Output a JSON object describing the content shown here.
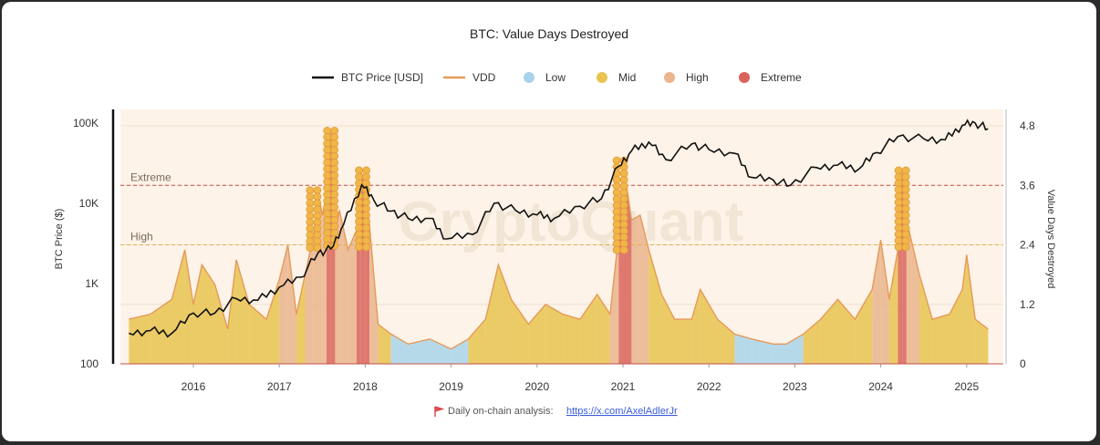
{
  "chart_data": {
    "type": "area",
    "title": "BTC: Value Days Destroyed",
    "legend": [
      {
        "name": "BTC Price [USD]",
        "color": "#111111",
        "kind": "line"
      },
      {
        "name": "VDD",
        "color": "#e59a5a",
        "kind": "line"
      },
      {
        "name": "Low",
        "color": "#a9d3ea",
        "kind": "dot"
      },
      {
        "name": "Mid",
        "color": "#e8c34f",
        "kind": "dot"
      },
      {
        "name": "High",
        "color": "#eab48c",
        "kind": "dot"
      },
      {
        "name": "Extreme",
        "color": "#d9635a",
        "kind": "dot"
      }
    ],
    "legend_placement": "top-center",
    "x_ticks": [
      "2016",
      "2017",
      "2018",
      "2019",
      "2020",
      "2021",
      "2022",
      "2023",
      "2024",
      "2025"
    ],
    "left_axis": {
      "label": "BTC Price ($)",
      "scale": "log",
      "ticks": [
        "100",
        "1K",
        "10K",
        "100K"
      ],
      "range": [
        100,
        150000
      ]
    },
    "right_axis": {
      "label": "Value Days Destroyed",
      "ticks": [
        "0",
        "1.2",
        "2.4",
        "3.6",
        "4.8"
      ],
      "range": [
        0,
        4.8
      ]
    },
    "thresholds": [
      {
        "name": "Extreme",
        "value": 3.6,
        "color": "#c0524a"
      },
      {
        "name": "High",
        "value": 2.4,
        "color": "#e2b24a"
      }
    ],
    "btc_price": {
      "x": [
        2015.25,
        2015.5,
        2015.75,
        2016.0,
        2016.25,
        2016.5,
        2016.75,
        2017.0,
        2017.25,
        2017.45,
        2017.6,
        2017.75,
        2017.96,
        2018.1,
        2018.3,
        2018.5,
        2018.75,
        2018.95,
        2019.25,
        2019.5,
        2019.75,
        2020.0,
        2020.2,
        2020.5,
        2020.75,
        2020.95,
        2021.1,
        2021.3,
        2021.5,
        2021.8,
        2022.0,
        2022.3,
        2022.5,
        2022.75,
        2022.95,
        2023.25,
        2023.5,
        2023.75,
        2023.95,
        2024.2,
        2024.5,
        2024.75,
        2024.95,
        2025.1,
        2025.25
      ],
      "values": [
        240,
        260,
        240,
        430,
        430,
        650,
        620,
        900,
        1200,
        2400,
        2700,
        5500,
        17000,
        11000,
        8000,
        6500,
        6500,
        3600,
        4100,
        10000,
        8200,
        7200,
        6500,
        9200,
        11500,
        29000,
        45000,
        58000,
        35000,
        55000,
        47000,
        42000,
        21000,
        19500,
        16800,
        28000,
        30000,
        27000,
        43000,
        68000,
        64000,
        62000,
        94000,
        100000,
        85000
      ]
    },
    "vdd": {
      "x": [
        2015.25,
        2015.5,
        2015.75,
        2015.9,
        2016.0,
        2016.1,
        2016.25,
        2016.4,
        2016.5,
        2016.65,
        2016.85,
        2017.0,
        2017.1,
        2017.2,
        2017.3,
        2017.4,
        2017.45,
        2017.5,
        2017.55,
        2017.6,
        2017.65,
        2017.7,
        2017.8,
        2017.9,
        2017.95,
        2018.0,
        2018.05,
        2018.15,
        2018.3,
        2018.5,
        2018.75,
        2019.0,
        2019.2,
        2019.4,
        2019.55,
        2019.7,
        2019.9,
        2020.1,
        2020.3,
        2020.5,
        2020.7,
        2020.85,
        2020.95,
        2021.0,
        2021.1,
        2021.2,
        2021.3,
        2021.45,
        2021.6,
        2021.8,
        2021.9,
        2022.1,
        2022.3,
        2022.5,
        2022.75,
        2022.9,
        2023.1,
        2023.3,
        2023.5,
        2023.7,
        2023.9,
        2024.0,
        2024.1,
        2024.2,
        2024.25,
        2024.3,
        2024.45,
        2024.6,
        2024.8,
        2024.95,
        2025.0,
        2025.1,
        2025.25
      ],
      "values": [
        0.9,
        1.0,
        1.3,
        2.3,
        1.2,
        2.0,
        1.6,
        0.7,
        2.1,
        1.2,
        0.9,
        1.7,
        2.4,
        1.0,
        1.8,
        2.6,
        3.5,
        3.0,
        3.4,
        4.7,
        2.7,
        3.1,
        2.3,
        2.7,
        3.9,
        3.6,
        2.8,
        0.8,
        0.6,
        0.4,
        0.5,
        0.3,
        0.5,
        0.9,
        2.0,
        1.3,
        0.8,
        1.2,
        1.0,
        0.9,
        1.4,
        1.0,
        2.6,
        4.1,
        2.9,
        3.0,
        2.3,
        1.4,
        0.9,
        0.9,
        1.5,
        0.9,
        0.6,
        0.5,
        0.4,
        0.4,
        0.6,
        0.9,
        1.3,
        0.9,
        1.5,
        2.5,
        1.3,
        2.3,
        3.9,
        2.9,
        1.8,
        0.9,
        1.0,
        1.5,
        2.2,
        0.9,
        0.7
      ]
    },
    "extreme_markers": [
      {
        "x": 2017.4,
        "value": 3.5
      },
      {
        "x": 2017.6,
        "value": 4.7
      },
      {
        "x": 2017.97,
        "value": 3.9
      },
      {
        "x": 2020.97,
        "value": 4.1
      },
      {
        "x": 2024.25,
        "value": 3.9
      }
    ],
    "watermark": "CryptoQuant",
    "footer_text": "Daily on-chain analysis:",
    "footer_link": "https://x.com/AxelAdlerJr"
  }
}
